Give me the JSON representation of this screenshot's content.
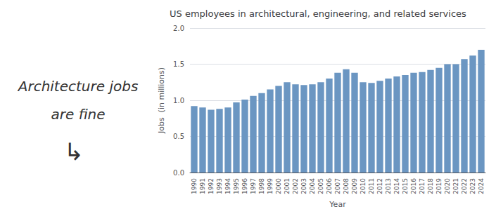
{
  "chart_data": {
    "type": "bar",
    "title": "US employees in architectural, engineering, and related services",
    "xlabel": "Year",
    "ylabel": "Jobs  (in millions)",
    "annotations": [
      "Architecture jobs",
      "are fine",
      "↳"
    ],
    "categories": [
      "1990",
      "1991",
      "1992",
      "1993",
      "1994",
      "1995",
      "1996",
      "1997",
      "1998",
      "1999",
      "2000",
      "2001",
      "2002",
      "2003",
      "2004",
      "2005",
      "2006",
      "2007",
      "2008",
      "2009",
      "2010",
      "2011",
      "2012",
      "2013",
      "2014",
      "2015",
      "2016",
      "2017",
      "2018",
      "2019",
      "2020",
      "2021",
      "2022",
      "2023",
      "2024"
    ],
    "values": [
      0.92,
      0.9,
      0.87,
      0.88,
      0.9,
      0.97,
      1.01,
      1.06,
      1.1,
      1.15,
      1.2,
      1.25,
      1.22,
      1.21,
      1.22,
      1.25,
      1.3,
      1.38,
      1.43,
      1.38,
      1.25,
      1.24,
      1.27,
      1.3,
      1.33,
      1.35,
      1.38,
      1.39,
      1.42,
      1.45,
      1.5,
      1.5,
      1.57,
      1.62,
      1.7
    ],
    "color": "#6b96c2",
    "ylim": [
      0.0,
      2.0
    ],
    "yticks": [
      {
        "value": 0.0,
        "label": "0.0"
      },
      0.5,
      {
        "value": 1.0,
        "label": "1.0"
      },
      1.5,
      {
        "value": 2.0,
        "label": "2.0"
      }
    ],
    "grid": true
  }
}
